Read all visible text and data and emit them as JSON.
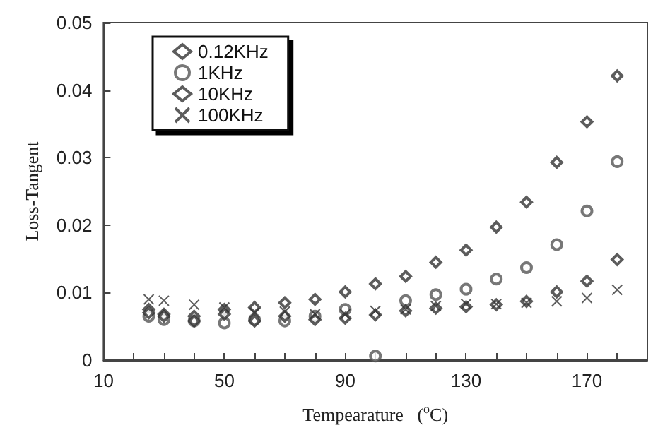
{
  "chart_data": {
    "type": "scatter",
    "xlabel": "Tempearature   ($^{o}$C)",
    "ylabel": "Loss-Tangent",
    "x": [
      25,
      30,
      40,
      50,
      60,
      70,
      80,
      90,
      100,
      110,
      120,
      130,
      140,
      150,
      160,
      170,
      180
    ],
    "series": [
      {
        "name": "0.12KHz",
        "color": "#333333",
        "marker": "diamond",
        "values": [
          0.0075,
          0.0068,
          0.0065,
          0.0075,
          0.0078,
          0.0085,
          0.009,
          0.0101,
          0.0113,
          0.0124,
          0.0145,
          0.0163,
          0.0197,
          0.0234,
          0.0293,
          0.0353,
          0.0421
        ]
      },
      {
        "name": "1KHz",
        "color": "#555555",
        "marker": "circle",
        "values": [
          0.0065,
          0.006,
          0.0058,
          0.0055,
          0.006,
          0.0058,
          0.0065,
          0.0075,
          0.0006,
          0.0088,
          0.0097,
          0.0105,
          0.012,
          0.0137,
          0.0171,
          0.0221,
          0.0294
        ]
      },
      {
        "name": "10KHz",
        "color": "#333333",
        "marker": "diamond",
        "values": [
          0.007,
          0.0065,
          0.0058,
          0.0068,
          0.0058,
          0.0065,
          0.006,
          0.0062,
          0.0067,
          0.0073,
          0.0077,
          0.0079,
          0.0082,
          0.0087,
          0.0101,
          0.0117,
          0.0149
        ]
      },
      {
        "name": "100KHz",
        "color": "#333333",
        "marker": "cross",
        "values": [
          0.009,
          0.0088,
          0.0082,
          0.0078,
          0.007,
          0.0072,
          0.0068,
          0.0068,
          0.0073,
          0.0075,
          0.008,
          0.0083,
          0.0083,
          0.0085,
          0.0087,
          0.0092,
          0.0104
        ]
      }
    ],
    "xlim": [
      10,
      190
    ],
    "xticks": [
      10,
      {
        "value": 20,
        "label": null
      },
      {
        "value": 30,
        "label": null
      },
      {
        "value": 40,
        "label": null
      },
      50,
      {
        "value": 60,
        "label": null
      },
      {
        "value": 70,
        "label": null
      },
      {
        "value": 80,
        "label": null
      },
      90,
      {
        "value": 100,
        "label": null
      },
      {
        "value": 110,
        "label": null
      },
      {
        "value": 120,
        "label": null
      },
      130,
      {
        "value": 140,
        "label": null
      },
      {
        "value": 150,
        "label": null
      },
      {
        "value": 160,
        "label": null
      },
      170,
      {
        "value": 180,
        "label": null
      }
    ],
    "ylim": [
      0,
      0.05
    ],
    "yticks": [
      0,
      0.01,
      0.02,
      0.03,
      0.04,
      0.05
    ],
    "legend": "top left",
    "grid": false
  }
}
